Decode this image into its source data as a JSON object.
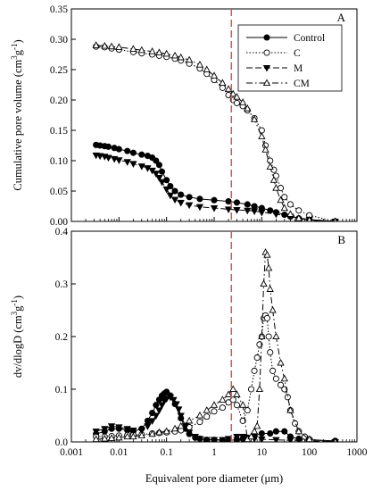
{
  "figure": {
    "xlabel": "Equivalent pore diameter  (μm)"
  },
  "chart_data": [
    {
      "type": "scatter",
      "panel_label": "A",
      "ylabel_main": "Cumulative pore volume (cm",
      "ylabel_sup1": "3",
      "ylabel_mid": "g",
      "ylabel_sup2": "-1",
      "ylabel_end": ")",
      "xscale": "log",
      "xlim": [
        0.001,
        1000
      ],
      "ylim": [
        0,
        0.35
      ],
      "x_ticks": [
        0.001,
        0.01,
        0.1,
        1,
        10,
        100,
        1000
      ],
      "y_ticks": [
        0.0,
        0.05,
        0.1,
        0.15,
        0.2,
        0.25,
        0.3,
        0.35
      ],
      "y_tick_labels": [
        "0.00",
        "0.05",
        "0.10",
        "0.15",
        "0.20",
        "0.25",
        "0.30",
        "0.35"
      ],
      "legend": "top-right",
      "reference_line_x": 2.3,
      "series": [
        {
          "name": "Control",
          "marker": "circle-filled",
          "line": "solid",
          "show_in_legend": true,
          "x": [
            0.0033,
            0.004,
            0.005,
            0.006,
            0.008,
            0.01,
            0.015,
            0.02,
            0.03,
            0.04,
            0.05,
            0.06,
            0.07,
            0.08,
            0.1,
            0.12,
            0.15,
            0.2,
            0.3,
            0.5,
            1,
            2,
            3,
            5,
            7,
            10,
            15,
            20,
            30,
            40,
            60,
            100,
            350
          ],
          "y": [
            0.126,
            0.125,
            0.124,
            0.123,
            0.121,
            0.119,
            0.116,
            0.113,
            0.11,
            0.108,
            0.105,
            0.1,
            0.093,
            0.082,
            0.068,
            0.058,
            0.05,
            0.044,
            0.04,
            0.037,
            0.035,
            0.033,
            0.031,
            0.028,
            0.025,
            0.022,
            0.018,
            0.015,
            0.011,
            0.008,
            0.005,
            0.003,
            0.0
          ]
        },
        {
          "name": "C",
          "marker": "circle-open",
          "line": "dotted",
          "show_in_legend": true,
          "x": [
            0.0033,
            0.005,
            0.007,
            0.01,
            0.02,
            0.03,
            0.05,
            0.07,
            0.1,
            0.15,
            0.2,
            0.3,
            0.5,
            0.7,
            1,
            1.5,
            2,
            2.5,
            3,
            4,
            5,
            7,
            10,
            12,
            15,
            18,
            20,
            25,
            30,
            40,
            60,
            100,
            350
          ],
          "y": [
            0.288,
            0.287,
            0.285,
            0.283,
            0.279,
            0.277,
            0.275,
            0.273,
            0.271,
            0.268,
            0.265,
            0.26,
            0.252,
            0.243,
            0.233,
            0.22,
            0.208,
            0.2,
            0.195,
            0.19,
            0.183,
            0.17,
            0.15,
            0.125,
            0.1,
            0.085,
            0.075,
            0.055,
            0.04,
            0.028,
            0.018,
            0.01,
            0.0
          ]
        },
        {
          "name": "M",
          "marker": "triangle-down-filled",
          "line": "dashed",
          "show_in_legend": true,
          "x": [
            0.0033,
            0.004,
            0.005,
            0.006,
            0.008,
            0.01,
            0.015,
            0.02,
            0.03,
            0.04,
            0.05,
            0.06,
            0.07,
            0.08,
            0.1,
            0.12,
            0.15,
            0.2,
            0.3,
            0.5,
            1,
            2,
            3,
            5,
            7,
            10,
            20,
            40,
            100,
            350
          ],
          "y": [
            0.109,
            0.108,
            0.107,
            0.105,
            0.103,
            0.101,
            0.098,
            0.095,
            0.091,
            0.088,
            0.084,
            0.079,
            0.072,
            0.065,
            0.053,
            0.043,
            0.036,
            0.031,
            0.027,
            0.024,
            0.022,
            0.02,
            0.019,
            0.018,
            0.017,
            0.015,
            0.012,
            0.008,
            0.003,
            0.0
          ]
        },
        {
          "name": "CM",
          "marker": "triangle-up-open",
          "line": "dash-dot",
          "show_in_legend": true,
          "x": [
            0.0033,
            0.005,
            0.007,
            0.01,
            0.02,
            0.03,
            0.05,
            0.07,
            0.1,
            0.15,
            0.2,
            0.3,
            0.5,
            0.7,
            1,
            1.5,
            2,
            2.5,
            3,
            4,
            5,
            7,
            10,
            12,
            15,
            18,
            20,
            25,
            30,
            40,
            60,
            100,
            350
          ],
          "y": [
            0.29,
            0.289,
            0.288,
            0.287,
            0.284,
            0.282,
            0.28,
            0.278,
            0.276,
            0.273,
            0.27,
            0.266,
            0.258,
            0.25,
            0.24,
            0.228,
            0.218,
            0.21,
            0.205,
            0.196,
            0.186,
            0.168,
            0.14,
            0.118,
            0.09,
            0.068,
            0.055,
            0.035,
            0.022,
            0.012,
            0.005,
            0.002,
            0.0
          ]
        }
      ]
    },
    {
      "type": "scatter",
      "panel_label": "B",
      "ylabel_main": "dv/dlogD (cm",
      "ylabel_sup1": "3",
      "ylabel_mid": "g",
      "ylabel_sup2": "-1",
      "ylabel_end": ")",
      "xscale": "log",
      "xlim": [
        0.001,
        1000
      ],
      "ylim": [
        0,
        0.4
      ],
      "x_ticks": [
        0.001,
        0.01,
        0.1,
        1,
        10,
        100,
        1000
      ],
      "x_tick_labels": [
        "0.001",
        "0.01",
        "0.1",
        "1",
        "10",
        "100",
        "1000"
      ],
      "y_ticks": [
        0.0,
        0.1,
        0.2,
        0.3,
        0.4
      ],
      "y_tick_labels": [
        "0.0",
        "0.1",
        "0.2",
        "0.3",
        "0.4"
      ],
      "reference_line_x": 2.3,
      "series": [
        {
          "name": "Control",
          "marker": "circle-filled",
          "line": "solid",
          "show_in_legend": false,
          "x": [
            0.0033,
            0.005,
            0.007,
            0.01,
            0.015,
            0.02,
            0.03,
            0.04,
            0.05,
            0.06,
            0.07,
            0.08,
            0.09,
            0.1,
            0.12,
            0.15,
            0.2,
            0.25,
            0.3,
            0.4,
            0.5,
            0.7,
            1,
            1.5,
            2,
            3,
            4,
            5,
            7,
            10,
            15,
            20,
            30,
            40,
            60,
            100,
            350
          ],
          "y": [
            0.015,
            0.02,
            0.025,
            0.025,
            0.022,
            0.02,
            0.025,
            0.04,
            0.055,
            0.07,
            0.08,
            0.088,
            0.092,
            0.095,
            0.088,
            0.072,
            0.045,
            0.025,
            0.015,
            0.008,
            0.006,
            0.004,
            0.004,
            0.003,
            0.003,
            0.004,
            0.006,
            0.008,
            0.012,
            0.016,
            0.016,
            0.02,
            0.02,
            0.01,
            0.006,
            0.004,
            0.002
          ]
        },
        {
          "name": "C",
          "marker": "circle-open",
          "line": "dotted",
          "show_in_legend": false,
          "x": [
            0.0033,
            0.005,
            0.007,
            0.01,
            0.015,
            0.02,
            0.03,
            0.05,
            0.07,
            0.1,
            0.15,
            0.2,
            0.3,
            0.5,
            0.7,
            1,
            1.5,
            2,
            2.5,
            3,
            4,
            5,
            6,
            7,
            8,
            9,
            10,
            11,
            12,
            13,
            14,
            15,
            17,
            20,
            25,
            30,
            35,
            40,
            50,
            60,
            80,
            100,
            350
          ],
          "y": [
            0.01,
            0.01,
            0.011,
            0.012,
            0.013,
            0.013,
            0.014,
            0.016,
            0.017,
            0.018,
            0.02,
            0.022,
            0.028,
            0.038,
            0.048,
            0.058,
            0.065,
            0.075,
            0.08,
            0.07,
            0.04,
            0.06,
            0.1,
            0.135,
            0.16,
            0.185,
            0.2,
            0.235,
            0.24,
            0.235,
            0.2,
            0.17,
            0.135,
            0.12,
            0.108,
            0.1,
            0.085,
            0.06,
            0.035,
            0.02,
            0.01,
            0.005,
            0.0
          ]
        },
        {
          "name": "M",
          "marker": "triangle-down-filled",
          "line": "dashed",
          "show_in_legend": false,
          "x": [
            0.0033,
            0.005,
            0.007,
            0.01,
            0.015,
            0.02,
            0.03,
            0.04,
            0.05,
            0.06,
            0.07,
            0.08,
            0.09,
            0.1,
            0.12,
            0.14,
            0.16,
            0.18,
            0.2,
            0.25,
            0.3,
            0.4,
            0.5,
            0.7,
            1,
            1.5,
            2,
            3,
            4,
            5,
            7,
            10,
            20,
            40,
            100,
            350
          ],
          "y": [
            0.02,
            0.025,
            0.03,
            0.028,
            0.025,
            0.022,
            0.022,
            0.03,
            0.04,
            0.05,
            0.06,
            0.07,
            0.078,
            0.082,
            0.085,
            0.08,
            0.072,
            0.062,
            0.05,
            0.03,
            0.018,
            0.01,
            0.006,
            0.004,
            0.004,
            0.004,
            0.006,
            0.01,
            0.01,
            0.008,
            0.006,
            0.005,
            0.004,
            0.003,
            0.002,
            0.0
          ]
        },
        {
          "name": "CM",
          "marker": "triangle-up-open",
          "line": "dash-dot",
          "show_in_legend": false,
          "x": [
            0.0033,
            0.005,
            0.007,
            0.01,
            0.015,
            0.02,
            0.03,
            0.05,
            0.07,
            0.1,
            0.15,
            0.2,
            0.3,
            0.5,
            0.7,
            1,
            1.5,
            2,
            2.5,
            3,
            4,
            5,
            6,
            7,
            8,
            9,
            10,
            11,
            12,
            13,
            14,
            15,
            17,
            20,
            25,
            30,
            40,
            60,
            100,
            350
          ],
          "y": [
            0.005,
            0.006,
            0.007,
            0.008,
            0.01,
            0.01,
            0.012,
            0.015,
            0.018,
            0.02,
            0.025,
            0.03,
            0.04,
            0.05,
            0.06,
            0.07,
            0.08,
            0.09,
            0.1,
            0.09,
            0.07,
            0.005,
            0.01,
            0.02,
            0.03,
            0.1,
            0.2,
            0.3,
            0.36,
            0.355,
            0.33,
            0.29,
            0.25,
            0.2,
            0.15,
            0.12,
            0.06,
            0.02,
            0.005,
            0.0
          ]
        }
      ]
    }
  ]
}
